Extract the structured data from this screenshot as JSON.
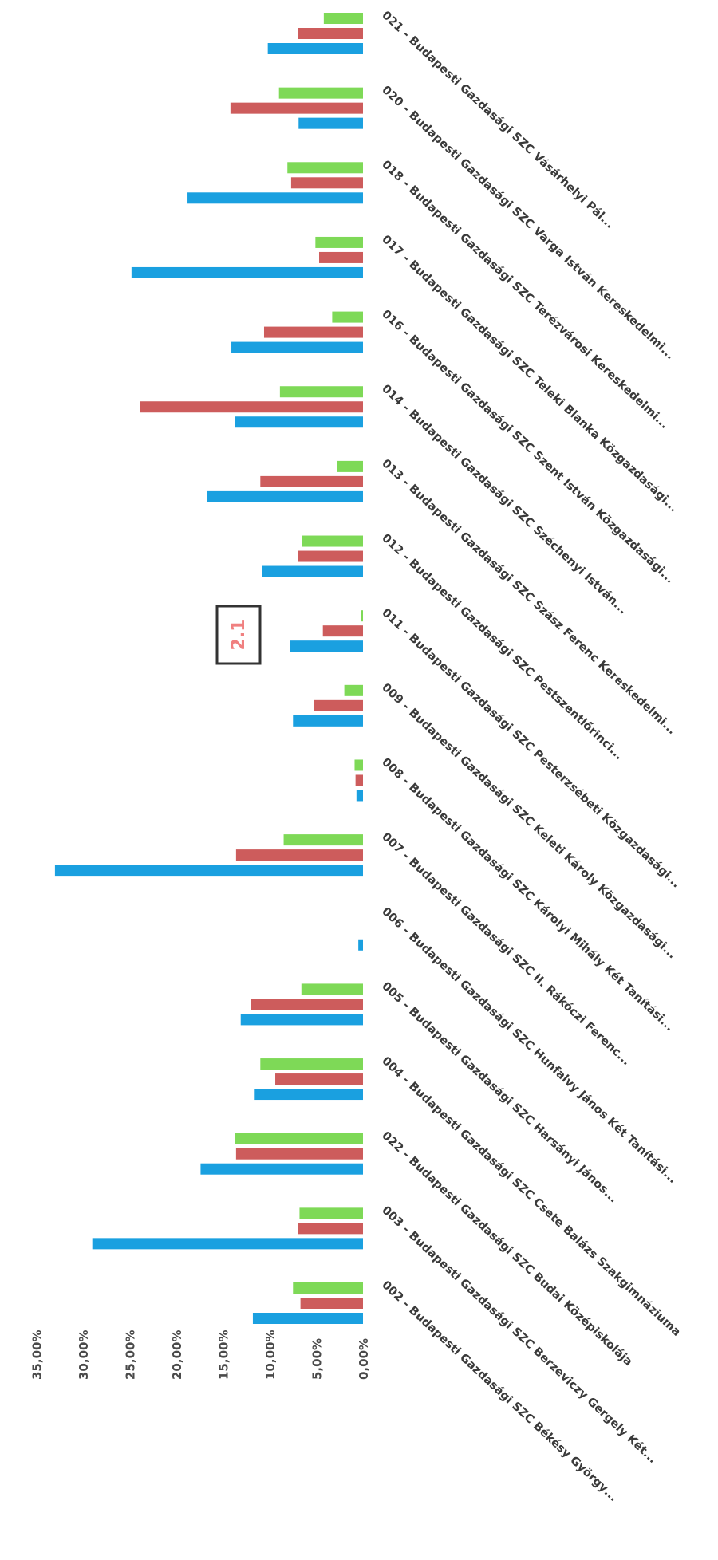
{
  "chart_data": {
    "type": "bar",
    "orientation": "horizontal",
    "categories": [
      "002 - Budapesti Gazdasági SZC Békésy Györgу...",
      "003 - Budapesti Gazdasági SZC Berzeviczy Gergely Két...",
      "022 - Budapesti Gazdasági SZC Budai Középiskolája",
      "004 - Budapesti Gazdasági SZC Csete Balázs Szakgimnáziuma",
      "005 - Budapesti Gazdasági SZC Harsányi János...",
      "006 - Budapesti Gazdasági SZC Hunfalvy János Két Tanítási...",
      "007 - Budapesti Gazdasági SZC II. Rákóczi Ferenc...",
      "008 - Budapesti Gazdasági SZC Károlyi Mihály Két Tanítási...",
      "009 - Budapesti Gazdasági SZC Keleti Károly Közgazdasági...",
      "011 - Budapesti Gazdasági SZC Pesterzsébeti Közgazdasági...",
      "012 - Budapesti Gazdasági SZC Pestszentlőrinci...",
      "013 - Budapesti Gazdasági SZC Szász Ferenc Kereskedelmi...",
      "014 - Budapesti Gazdasági SZC Széchenyi István...",
      "016 - Budapesti Gazdasági SZC Szent István Közgazdasági...",
      "017 - Budapesti Gazdasági SZC Teleki Blanka Közgazdasági...",
      "018 - Budapesti Gazdasági SZC Terézvárosi Kereskedelmi...",
      "020 - Budapesti Gazdasági SZC Varga István Kereskedelmi...",
      "021 - Budapesti Gazdasági SZC Vásárhelyi Pál..."
    ],
    "series": [
      {
        "color": "#1aa0e0",
        "values": [
          11.8,
          29.0,
          17.4,
          11.6,
          13.1,
          0.5,
          33.0,
          0.7,
          7.5,
          7.8,
          10.8,
          16.7,
          13.7,
          14.1,
          24.8,
          18.8,
          6.9,
          10.2
        ]
      },
      {
        "color": "#cd5c5c",
        "values": [
          6.7,
          7.0,
          13.6,
          9.4,
          12.0,
          0.0,
          13.6,
          0.8,
          5.3,
          4.3,
          7.0,
          11.0,
          23.9,
          10.6,
          4.7,
          7.7,
          14.2,
          7.0
        ]
      },
      {
        "color": "#7ed957",
        "values": [
          7.5,
          6.8,
          13.7,
          11.0,
          6.6,
          0.0,
          8.5,
          0.9,
          2.0,
          0.2,
          6.5,
          2.8,
          8.9,
          3.3,
          5.1,
          8.1,
          9.0,
          4.2
        ]
      }
    ],
    "y_ticks": [
      "0,00%",
      "5,00%",
      "10,00%",
      "15,00%",
      "20,00%",
      "25,00%",
      "30,00%",
      "35,00%"
    ],
    "ylim": [
      0,
      35
    ],
    "grid": false,
    "legend": "none",
    "title": "",
    "xlabel": "",
    "ylabel": ""
  },
  "stamp": {
    "text": "2.1"
  }
}
